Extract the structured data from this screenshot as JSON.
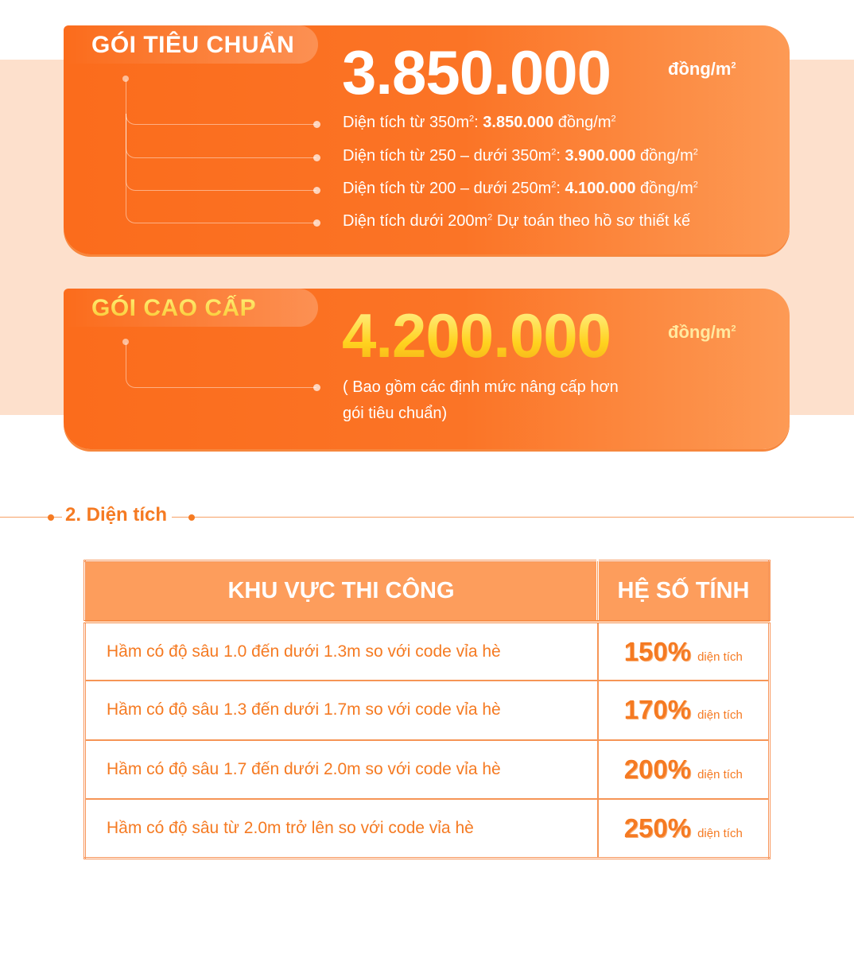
{
  "standard": {
    "label": "GÓI TIÊU CHUẨN",
    "price": "3.850.000",
    "unit": "đồng/m",
    "unit_sup": "2",
    "items": [
      {
        "pre": "Diện tích từ 350m",
        "sup": "2",
        "mid": ": ",
        "bold": "3.850.000",
        "post": " đồng/m",
        "post_sup": "2"
      },
      {
        "pre": "Diện tích từ 250 – dưới 350m",
        "sup": "2",
        "mid": ": ",
        "bold": "3.900.000",
        "post": " đồng/m",
        "post_sup": "2"
      },
      {
        "pre": "Diện tích từ 200 – dưới 250m",
        "sup": "2",
        "mid": ": ",
        "bold": "4.100.000",
        "post": " đồng/m",
        "post_sup": "2"
      },
      {
        "pre": "Diện tích dưới 200m",
        "sup": "2",
        "mid": " Dự toán theo hồ sơ thiết kế",
        "bold": "",
        "post": "",
        "post_sup": ""
      }
    ]
  },
  "premium": {
    "label": "GÓI CAO CẤP",
    "price": "4.200.000",
    "unit": "đồng/m",
    "unit_sup": "2",
    "note1": "( Bao gồm các định mức nâng cấp hơn",
    "note2": "gói tiêu chuẩn)"
  },
  "section": {
    "title": "2. Diện tích"
  },
  "table": {
    "headers": [
      "KHU VỰC THI CÔNG",
      "HỆ SỐ TÍNH"
    ],
    "rows": [
      {
        "area": "Hầm có độ sâu 1.0 đến dưới 1.3m so với code vỉa hè",
        "pct": "150%",
        "unit": "diện tích"
      },
      {
        "area": "Hầm có độ sâu 1.3 đến dưới 1.7m so với code vỉa hè",
        "pct": "170%",
        "unit": "diện tích"
      },
      {
        "area": "Hầm có độ sâu 1.7 đến dưới 2.0m so với code vỉa hè",
        "pct": "200%",
        "unit": "diện tích"
      },
      {
        "area": "Hầm có độ sâu từ 2.0m trở lên so với code vỉa hè",
        "pct": "250%",
        "unit": "diện tích"
      }
    ]
  },
  "colors": {
    "accent": "#fb6c1c",
    "peach": "#fde0cc",
    "header": "#fd9d5c",
    "gold": "#ffd21e"
  }
}
